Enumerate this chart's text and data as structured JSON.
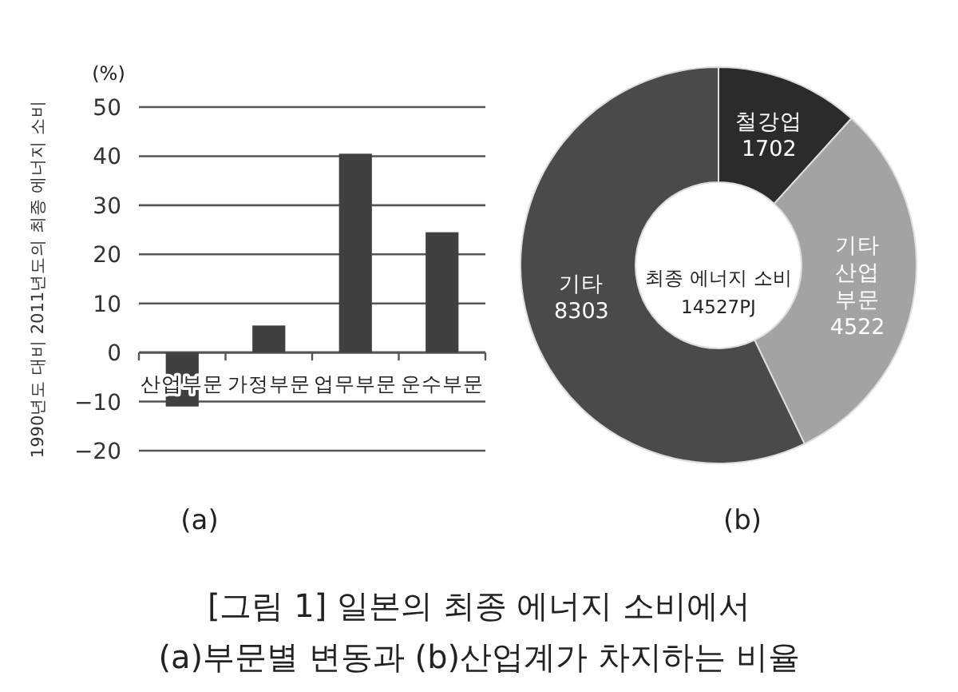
{
  "chart_data": [
    {
      "type": "bar",
      "ylabel": "1990년도 대비 2011년도의 최종 에너지 소비",
      "categories": [
        "산업부문",
        "가정부문",
        "업무부문",
        "운수부문"
      ],
      "values": [
        -11,
        5.5,
        40.5,
        24.5
      ],
      "color": "#404040",
      "ylim": [
        -20,
        50
      ],
      "yticks": [
        {
          "value": -20,
          "label": "−20"
        },
        {
          "value": -10,
          "label": "−10"
        },
        0,
        10,
        20,
        30,
        40,
        50
      ],
      "grid": "y",
      "annotations": [
        "(%)",
        "(a)",
        "[그림 1] 일본의 최종 에너지 소비에서",
        "(a)부문별 변동과 (b)산업계가 차지하는 비율"
      ]
    },
    {
      "type": "donut",
      "categories": [
        "철강업",
        "기타 산업 부문",
        "기타"
      ],
      "values": [
        1702,
        4522,
        8303
      ],
      "colors": [
        "#2b2b2b",
        "#a3a3a3",
        "#4a4a4a"
      ],
      "data_labels": true,
      "annotations": [
        "최종 에너지 소비",
        "14527PJ",
        "(b)"
      ]
    }
  ]
}
